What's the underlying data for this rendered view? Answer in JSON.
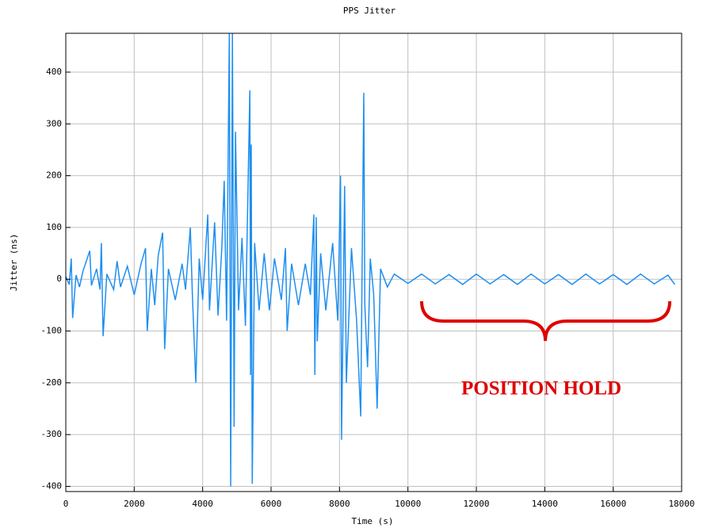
{
  "chart_data": {
    "type": "line",
    "title": "PPS Jitter",
    "x_label": "Time (s)",
    "y_label": "Jitter (ns)",
    "annotation": "POSITION HOLD",
    "xlim": [
      0,
      18000
    ],
    "ylim": [
      -410,
      475
    ],
    "xticks": [
      0,
      2000,
      4000,
      6000,
      8000,
      10000,
      12000,
      14000,
      16000,
      18000
    ],
    "yticks": [
      -400,
      -300,
      -200,
      -100,
      0,
      100,
      200,
      300,
      400
    ],
    "grid": true,
    "x": [
      0,
      100,
      160,
      200,
      300,
      400,
      500,
      700,
      750,
      900,
      1000,
      1040,
      1090,
      1200,
      1400,
      1500,
      1600,
      1800,
      2000,
      2200,
      2330,
      2380,
      2500,
      2600,
      2700,
      2830,
      2890,
      3000,
      3200,
      3400,
      3500,
      3640,
      3700,
      3800,
      3900,
      4000,
      4150,
      4200,
      4350,
      4450,
      4560,
      4630,
      4700,
      4780,
      4820,
      4870,
      4920,
      4960,
      5050,
      5150,
      5250,
      5380,
      5400,
      5420,
      5450,
      5520,
      5650,
      5800,
      5950,
      6100,
      6300,
      6420,
      6470,
      6600,
      6800,
      7000,
      7150,
      7250,
      7280,
      7320,
      7350,
      7450,
      7600,
      7800,
      7950,
      8030,
      8060,
      8150,
      8200,
      8350,
      8500,
      8620,
      8710,
      8740,
      8820,
      8900,
      9000,
      9100,
      9200,
      9400,
      9600,
      10000,
      10400,
      10800,
      11200,
      11600,
      12000,
      12400,
      12800,
      13200,
      13600,
      14000,
      14400,
      14800,
      15200,
      15600,
      16000,
      16400,
      16800,
      17200,
      17600,
      17800
    ],
    "series": [
      {
        "name": "Jitter",
        "color": "#1e8ff0",
        "values": [
          5,
          -10,
          40,
          -75,
          8,
          -15,
          15,
          55,
          -12,
          20,
          -20,
          70,
          -110,
          10,
          -20,
          35,
          -15,
          25,
          -30,
          30,
          60,
          -100,
          20,
          -50,
          45,
          90,
          -135,
          20,
          -40,
          30,
          -20,
          100,
          -30,
          -200,
          40,
          -40,
          125,
          -60,
          110,
          -70,
          60,
          190,
          -80,
          475,
          -400,
          475,
          -285,
          285,
          -60,
          80,
          -90,
          365,
          -185,
          260,
          -395,
          70,
          -60,
          50,
          -60,
          40,
          -40,
          60,
          -100,
          30,
          -50,
          30,
          -30,
          125,
          -185,
          120,
          -120,
          50,
          -60,
          70,
          -80,
          200,
          -310,
          180,
          -200,
          60,
          -80,
          -265,
          360,
          -50,
          -170,
          40,
          -30,
          -250,
          20,
          -15,
          10,
          -8,
          10,
          -9,
          9,
          -10,
          10,
          -9,
          9,
          -10,
          10,
          -9,
          9,
          -10,
          10,
          -9,
          9,
          -10,
          10,
          -9,
          8,
          -10
        ]
      }
    ]
  }
}
